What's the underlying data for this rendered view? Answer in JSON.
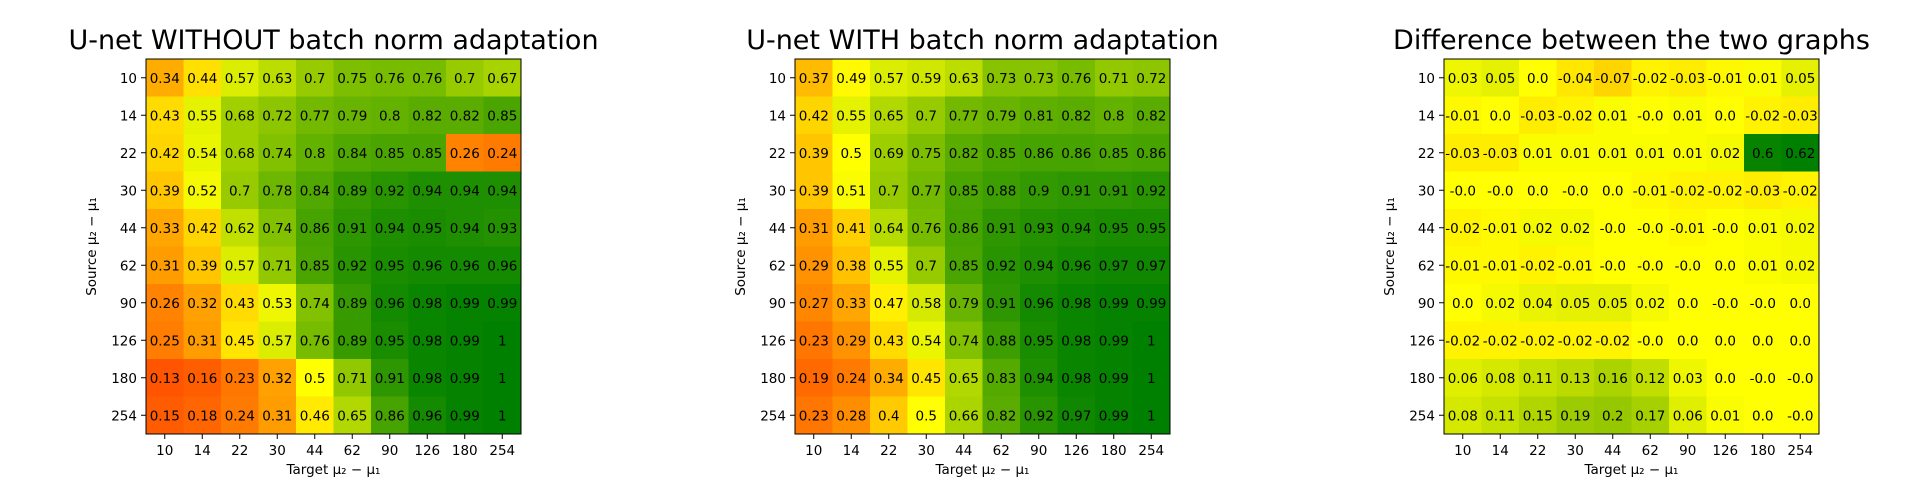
{
  "chart_data": [
    {
      "type": "heatmap",
      "title": "U-net WITHOUT batch norm adaptation",
      "xlabel": "Target μ₂ − μ₁",
      "ylabel": "Source μ₂ − μ₁",
      "x": [
        "10",
        "14",
        "22",
        "30",
        "44",
        "62",
        "90",
        "126",
        "180",
        "254"
      ],
      "y": [
        "10",
        "14",
        "22",
        "30",
        "44",
        "62",
        "90",
        "126",
        "180",
        "254"
      ],
      "value_range": [
        0,
        1
      ],
      "colormap": "autumn-to-green",
      "values": [
        [
          0.34,
          0.44,
          0.57,
          0.63,
          0.7,
          0.75,
          0.76,
          0.76,
          0.7,
          0.67
        ],
        [
          0.43,
          0.55,
          0.68,
          0.72,
          0.77,
          0.79,
          0.8,
          0.82,
          0.82,
          0.85
        ],
        [
          0.42,
          0.54,
          0.68,
          0.74,
          0.8,
          0.84,
          0.85,
          0.85,
          0.26,
          0.24
        ],
        [
          0.39,
          0.52,
          0.7,
          0.78,
          0.84,
          0.89,
          0.92,
          0.94,
          0.94,
          0.94
        ],
        [
          0.33,
          0.42,
          0.62,
          0.74,
          0.86,
          0.91,
          0.94,
          0.95,
          0.94,
          0.93
        ],
        [
          0.31,
          0.39,
          0.57,
          0.71,
          0.85,
          0.92,
          0.95,
          0.96,
          0.96,
          0.96
        ],
        [
          0.26,
          0.32,
          0.43,
          0.53,
          0.74,
          0.89,
          0.96,
          0.98,
          0.99,
          0.99
        ],
        [
          0.25,
          0.31,
          0.45,
          0.57,
          0.76,
          0.89,
          0.95,
          0.98,
          0.99,
          1.0
        ],
        [
          0.13,
          0.16,
          0.23,
          0.32,
          0.5,
          0.71,
          0.91,
          0.98,
          0.99,
          1.0
        ],
        [
          0.15,
          0.18,
          0.24,
          0.31,
          0.46,
          0.65,
          0.86,
          0.96,
          0.99,
          1.0
        ]
      ]
    },
    {
      "type": "heatmap",
      "title": "U-net WITH batch norm adaptation",
      "xlabel": "Target μ₂ − μ₁",
      "ylabel": "Source μ₂ − μ₁",
      "x": [
        "10",
        "14",
        "22",
        "30",
        "44",
        "62",
        "90",
        "126",
        "180",
        "254"
      ],
      "y": [
        "10",
        "14",
        "22",
        "30",
        "44",
        "62",
        "90",
        "126",
        "180",
        "254"
      ],
      "value_range": [
        0,
        1
      ],
      "colormap": "autumn-to-green",
      "values": [
        [
          0.37,
          0.49,
          0.57,
          0.59,
          0.63,
          0.73,
          0.73,
          0.76,
          0.71,
          0.72
        ],
        [
          0.42,
          0.55,
          0.65,
          0.7,
          0.77,
          0.79,
          0.81,
          0.82,
          0.8,
          0.82
        ],
        [
          0.39,
          0.5,
          0.69,
          0.75,
          0.82,
          0.85,
          0.86,
          0.86,
          0.85,
          0.86
        ],
        [
          0.39,
          0.51,
          0.7,
          0.77,
          0.85,
          0.88,
          0.9,
          0.91,
          0.91,
          0.92
        ],
        [
          0.31,
          0.41,
          0.64,
          0.76,
          0.86,
          0.91,
          0.93,
          0.94,
          0.95,
          0.95
        ],
        [
          0.29,
          0.38,
          0.55,
          0.7,
          0.85,
          0.92,
          0.94,
          0.96,
          0.97,
          0.97
        ],
        [
          0.27,
          0.33,
          0.47,
          0.58,
          0.79,
          0.91,
          0.96,
          0.98,
          0.99,
          0.99
        ],
        [
          0.23,
          0.29,
          0.43,
          0.54,
          0.74,
          0.88,
          0.95,
          0.98,
          0.99,
          1.0
        ],
        [
          0.19,
          0.24,
          0.34,
          0.45,
          0.65,
          0.83,
          0.94,
          0.98,
          0.99,
          1.0
        ],
        [
          0.23,
          0.28,
          0.4,
          0.5,
          0.66,
          0.82,
          0.92,
          0.97,
          0.99,
          1.0
        ]
      ]
    },
    {
      "type": "heatmap",
      "title": "Difference between the two graphs",
      "xlabel": "Target μ₂ − μ₁",
      "ylabel": "Source μ₂ − μ₁",
      "x": [
        "10",
        "14",
        "22",
        "30",
        "44",
        "62",
        "90",
        "126",
        "180",
        "254"
      ],
      "y": [
        "10",
        "14",
        "22",
        "30",
        "44",
        "62",
        "90",
        "126",
        "180",
        "254"
      ],
      "value_range": [
        -0.1,
        0.6
      ],
      "colormap": "yellow-to-green",
      "values": [
        [
          "0.03",
          "0.05",
          "0.0",
          "-0.04",
          "-0.07",
          "-0.02",
          "-0.03",
          "-0.01",
          "0.01",
          "0.05"
        ],
        [
          "-0.01",
          "0.0",
          "-0.03",
          "-0.02",
          "0.01",
          "-0.0",
          "0.01",
          "0.0",
          "-0.02",
          "-0.03"
        ],
        [
          "-0.03",
          "-0.03",
          "0.01",
          "0.01",
          "0.01",
          "0.01",
          "0.01",
          "0.02",
          "0.6",
          "0.62"
        ],
        [
          "-0.0",
          "-0.0",
          "0.0",
          "-0.0",
          "0.0",
          "-0.01",
          "-0.02",
          "-0.02",
          "-0.03",
          "-0.02"
        ],
        [
          "-0.02",
          "-0.01",
          "0.02",
          "0.02",
          "-0.0",
          "-0.0",
          "-0.01",
          "-0.0",
          "0.01",
          "0.02"
        ],
        [
          "-0.01",
          "-0.01",
          "-0.02",
          "-0.01",
          "-0.0",
          "-0.0",
          "-0.0",
          "0.0",
          "0.01",
          "0.02"
        ],
        [
          "0.0",
          "0.02",
          "0.04",
          "0.05",
          "0.05",
          "0.02",
          "0.0",
          "-0.0",
          "-0.0",
          "0.0"
        ],
        [
          "-0.02",
          "-0.02",
          "-0.02",
          "-0.02",
          "-0.02",
          "-0.0",
          "0.0",
          "0.0",
          "0.0",
          "0.0"
        ],
        [
          "0.06",
          "0.08",
          "0.11",
          "0.13",
          "0.16",
          "0.12",
          "0.03",
          "0.0",
          "-0.0",
          "-0.0"
        ],
        [
          "0.08",
          "0.11",
          "0.15",
          "0.19",
          "0.2",
          "0.17",
          "0.06",
          "0.01",
          "0.0",
          "-0.0"
        ]
      ]
    }
  ]
}
